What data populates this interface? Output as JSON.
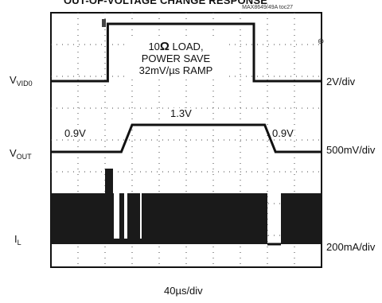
{
  "title": "OUT-OF-VOLTAGE CHANGE RESPONSE",
  "ref": "MAX8649/49A toc27",
  "annotation": {
    "value": "10",
    "symbol": "Ω",
    "rest": " LOAD,",
    "line2": "POWER SAVE",
    "line3": "32mV/µs RAMP"
  },
  "levels": {
    "high": "1.3V",
    "low_left": "0.9V",
    "low_right": "0.9V"
  },
  "channels": [
    {
      "main": "V",
      "sub": "VID0",
      "scale": "2V/div"
    },
    {
      "main": "V",
      "sub": "OUT",
      "scale": "500mV/div"
    },
    {
      "main": "I",
      "sub": "L",
      "scale": "200mA/div"
    }
  ],
  "timebase": "40µs/div",
  "chart_data": {
    "type": "line",
    "title": "",
    "xlabel": "40µs/div",
    "x_divisions": 10,
    "y_divisions": 8,
    "grid": true,
    "series": [
      {
        "name": "VVID0",
        "scale": "2V/div",
        "points": [
          [
            0,
            0
          ],
          [
            2.1,
            0
          ],
          [
            2.1,
            1
          ],
          [
            7.5,
            1
          ],
          [
            7.5,
            0
          ],
          [
            10,
            0
          ]
        ]
      },
      {
        "name": "VOUT",
        "scale": "500mV/div",
        "points": [
          [
            0,
            0.9
          ],
          [
            2.6,
            0.9
          ],
          [
            3.0,
            1.3
          ],
          [
            7.9,
            1.3
          ],
          [
            8.3,
            0.9
          ],
          [
            10,
            0.9
          ]
        ]
      },
      {
        "name": "IL",
        "scale": "200mA/div",
        "description_bands": [
          [
            0,
            8.0,
            "switching"
          ],
          [
            8.0,
            8.5,
            "idle"
          ],
          [
            8.5,
            10,
            "switching"
          ]
        ]
      }
    ]
  }
}
